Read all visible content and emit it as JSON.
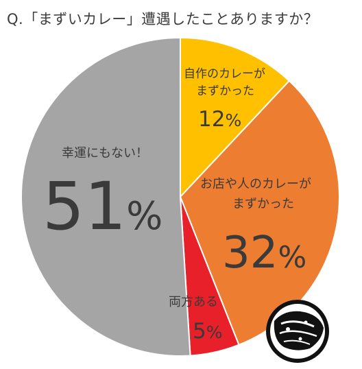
{
  "question": "Q.「まずいカレー」遭遇したことありますか？",
  "chart_data": {
    "type": "pie",
    "start_angle_deg": 0,
    "direction": "clockwise",
    "slices": [
      {
        "label_lines": [
          "自作のカレーが",
          "まずかった"
        ],
        "value": 12,
        "percent_label": "12",
        "color": "#FFC000"
      },
      {
        "label_lines": [
          "お店や人のカレーが",
          "まずかった"
        ],
        "value": 32,
        "percent_label": "32",
        "color": "#ED7D31"
      },
      {
        "label_lines": [
          "両方ある"
        ],
        "value": 5,
        "percent_label": "5",
        "color": "#E8202A"
      },
      {
        "label_lines": [
          "幸運にもない！"
        ],
        "value": 51,
        "percent_label": "51",
        "color": "#A5A5A5"
      }
    ],
    "percent_sign": "%"
  }
}
